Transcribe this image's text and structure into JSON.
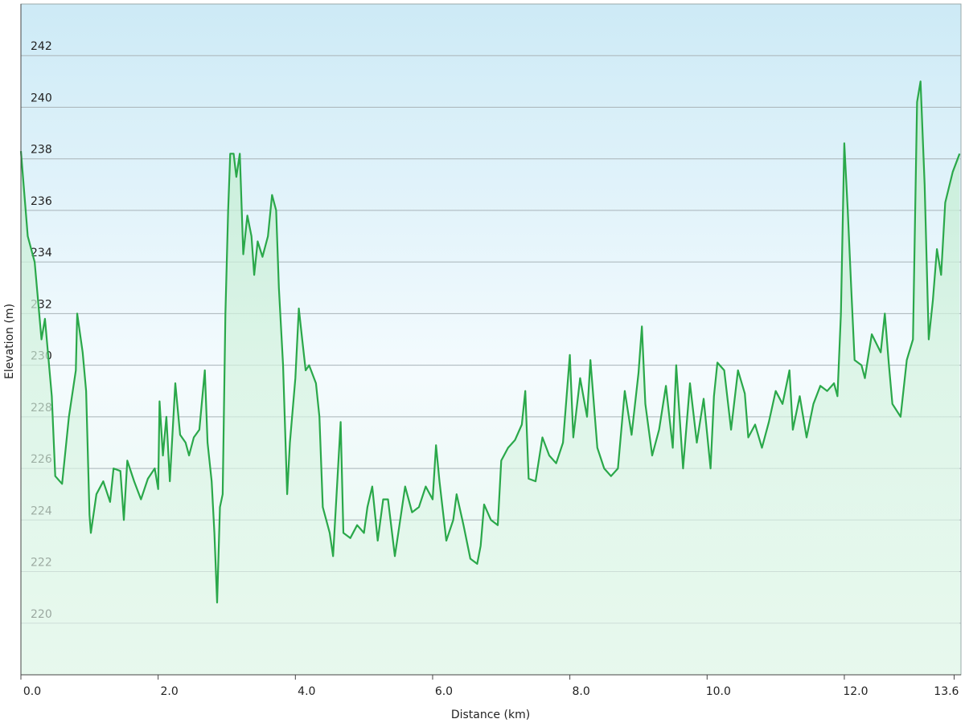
{
  "chart_data": {
    "type": "area",
    "x_label": "Distance  (km)",
    "y_label": "Elevation (m)",
    "color": "#2aa84a",
    "fill_color": "#c9efd6",
    "grid": true,
    "xlim": [
      0,
      13.7
    ],
    "ylim": [
      218,
      244
    ],
    "xticks": [
      {
        "value": 0,
        "label": "0.0"
      },
      {
        "value": 2,
        "label": "2.0"
      },
      {
        "value": 4,
        "label": "4.0"
      },
      {
        "value": 6,
        "label": "6.0"
      },
      {
        "value": 8,
        "label": "8.0"
      },
      {
        "value": 10,
        "label": "10.0"
      },
      {
        "value": 12,
        "label": "12.0"
      },
      {
        "value": 13.6,
        "label": "13.6"
      }
    ],
    "yticks": [
      220,
      222,
      224,
      226,
      228,
      230,
      232,
      234,
      236,
      238,
      240,
      242
    ],
    "x": [
      0,
      0.1,
      0.2,
      0.3,
      0.35,
      0.45,
      0.5,
      0.6,
      0.7,
      0.8,
      0.82,
      0.9,
      0.95,
      1.0,
      1.02,
      1.1,
      1.2,
      1.3,
      1.35,
      1.45,
      1.5,
      1.55,
      1.65,
      1.75,
      1.85,
      1.95,
      2.0,
      2.02,
      2.07,
      2.12,
      2.17,
      2.25,
      2.32,
      2.4,
      2.45,
      2.52,
      2.6,
      2.68,
      2.72,
      2.78,
      2.82,
      2.86,
      2.9,
      2.94,
      2.98,
      3.02,
      3.05,
      3.1,
      3.14,
      3.19,
      3.24,
      3.3,
      3.36,
      3.4,
      3.45,
      3.52,
      3.6,
      3.66,
      3.72,
      3.76,
      3.82,
      3.88,
      3.92,
      4.0,
      4.05,
      4.1,
      4.15,
      4.2,
      4.3,
      4.35,
      4.4,
      4.5,
      4.55,
      4.66,
      4.7,
      4.8,
      4.9,
      5.0,
      5.05,
      5.12,
      5.2,
      5.28,
      5.35,
      5.45,
      5.5,
      5.6,
      5.7,
      5.8,
      5.9,
      6.0,
      6.05,
      6.1,
      6.2,
      6.3,
      6.35,
      6.45,
      6.55,
      6.65,
      6.7,
      6.75,
      6.85,
      6.95,
      7.0,
      7.1,
      7.2,
      7.3,
      7.35,
      7.4,
      7.5,
      7.6,
      7.7,
      7.8,
      7.9,
      8.0,
      8.05,
      8.15,
      8.25,
      8.3,
      8.4,
      8.5,
      8.6,
      8.7,
      8.8,
      8.9,
      9.0,
      9.05,
      9.1,
      9.2,
      9.3,
      9.4,
      9.5,
      9.55,
      9.65,
      9.75,
      9.85,
      9.95,
      10.05,
      10.1,
      10.15,
      10.25,
      10.35,
      10.45,
      10.55,
      10.6,
      10.7,
      10.8,
      10.9,
      11.0,
      11.1,
      11.2,
      11.25,
      11.35,
      11.45,
      11.55,
      11.65,
      11.75,
      11.85,
      11.9,
      11.95,
      12.0,
      12.05,
      12.1,
      12.15,
      12.25,
      12.3,
      12.4,
      12.53,
      12.59,
      12.65,
      12.7,
      12.82,
      12.91,
      13.0,
      13.06,
      13.11,
      13.17,
      13.23,
      13.29,
      13.35,
      13.41,
      13.47,
      13.58,
      13.68
    ],
    "values": [
      238.3,
      235,
      234,
      231,
      231.8,
      228.8,
      225.7,
      225.4,
      228,
      229.8,
      232,
      230.5,
      229,
      224.2,
      223.5,
      225,
      225.5,
      224.7,
      226,
      225.9,
      224,
      226.3,
      225.5,
      224.8,
      225.6,
      226,
      225.2,
      228.6,
      226.5,
      228,
      225.5,
      229.3,
      227.3,
      227,
      226.5,
      227.2,
      227.5,
      229.8,
      227,
      225.5,
      223.5,
      220.8,
      224.5,
      225,
      232,
      236,
      238.2,
      238.2,
      237.3,
      238.2,
      234.3,
      235.8,
      235,
      233.5,
      234.8,
      234.2,
      235,
      236.6,
      236,
      233,
      230,
      225,
      227,
      229.5,
      232.2,
      231,
      229.8,
      230,
      229.3,
      228,
      224.5,
      223.5,
      222.6,
      227.8,
      223.5,
      223.3,
      223.8,
      223.5,
      224.5,
      225.3,
      223.2,
      224.8,
      224.8,
      222.6,
      223.5,
      225.3,
      224.3,
      224.5,
      225.3,
      224.8,
      226.9,
      225.5,
      223.2,
      224,
      225,
      223.8,
      222.5,
      222.3,
      223,
      224.6,
      224,
      223.8,
      226.3,
      226.8,
      227.1,
      227.7,
      229,
      225.6,
      225.5,
      227.2,
      226.5,
      226.2,
      227,
      230.4,
      227.2,
      229.5,
      228,
      230.2,
      226.8,
      226,
      225.7,
      226,
      229,
      227.3,
      229.7,
      231.5,
      228.5,
      226.5,
      227.5,
      229.2,
      226.8,
      230,
      226,
      229.3,
      227,
      228.7,
      226,
      228.8,
      230.1,
      229.8,
      227.5,
      229.8,
      228.9,
      227.2,
      227.7,
      226.8,
      227.8,
      229,
      228.5,
      229.8,
      227.5,
      228.8,
      227.2,
      228.5,
      229.2,
      229,
      229.3,
      228.8,
      232,
      238.6,
      236,
      233,
      230.2,
      230,
      229.5,
      231.2,
      230.5,
      232,
      230,
      228.5,
      228,
      230.2,
      231,
      240.2,
      241,
      237,
      231,
      232.5,
      234.5,
      233.5,
      236.3,
      237.5,
      238.2
    ]
  }
}
